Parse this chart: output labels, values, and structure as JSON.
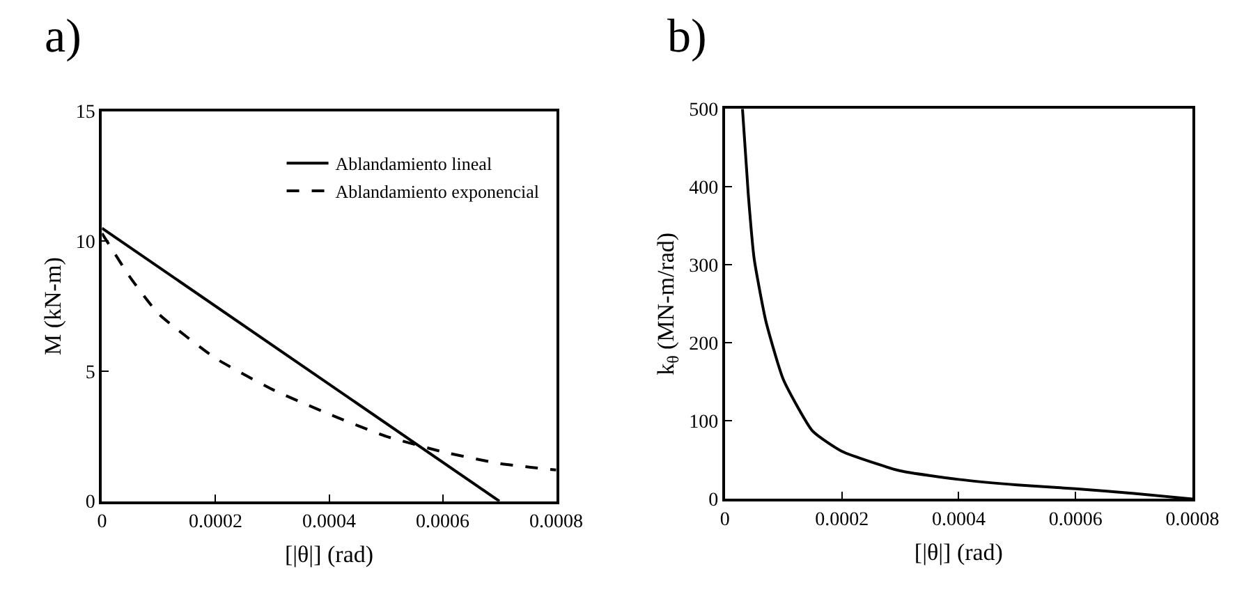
{
  "chart_data": [
    {
      "type": "line",
      "title": "a)",
      "xlabel": "[|θ|] (rad)",
      "ylabel": "M (kN-m)",
      "xlim": [
        0,
        0.0008
      ],
      "xticks": [
        0,
        0.0002,
        0.0004,
        0.0006,
        0.0008
      ],
      "ylim": [
        0,
        15
      ],
      "yticks": [
        0,
        5,
        10,
        15
      ],
      "legend": "top right",
      "series": [
        {
          "name": "Ablandamiento lineal",
          "color": "#000000",
          "line_style": "solid",
          "x": [
            0,
            0.0007
          ],
          "values": [
            10.5,
            0
          ]
        },
        {
          "name": "Ablandamiento exponencial",
          "color": "#000000",
          "line_style": "dashed",
          "x": [
            0,
            5e-05,
            0.0001,
            0.0002,
            0.0003,
            0.0004,
            0.0005,
            0.0006,
            0.0007,
            0.0008
          ],
          "values": [
            10.3,
            8.6,
            7.2,
            5.5,
            4.3,
            3.35,
            2.5,
            1.9,
            1.45,
            1.2
          ]
        }
      ]
    },
    {
      "type": "line",
      "title": "b)",
      "xlabel": "[|θ|] (rad)",
      "ylabel": "k$_{θ}$ (MN-m/rad)",
      "xlim": [
        0,
        0.0008
      ],
      "xticks": [
        0,
        0.0002,
        0.0004,
        0.0006,
        0.0008
      ],
      "ylim": [
        0,
        500
      ],
      "yticks": [
        0,
        100,
        200,
        300,
        400,
        500
      ],
      "series": [
        {
          "color": "#000000",
          "line_style": "solid",
          "x": [
            3e-05,
            4e-05,
            5e-05,
            7e-05,
            0.0001,
            0.00015,
            0.0002,
            0.0003,
            0.0004,
            0.0005,
            0.0006,
            0.0007,
            0.0008
          ],
          "values": [
            500,
            390,
            308,
            228,
            153,
            87,
            61,
            36,
            25,
            18,
            13,
            7,
            0
          ]
        }
      ]
    }
  ]
}
